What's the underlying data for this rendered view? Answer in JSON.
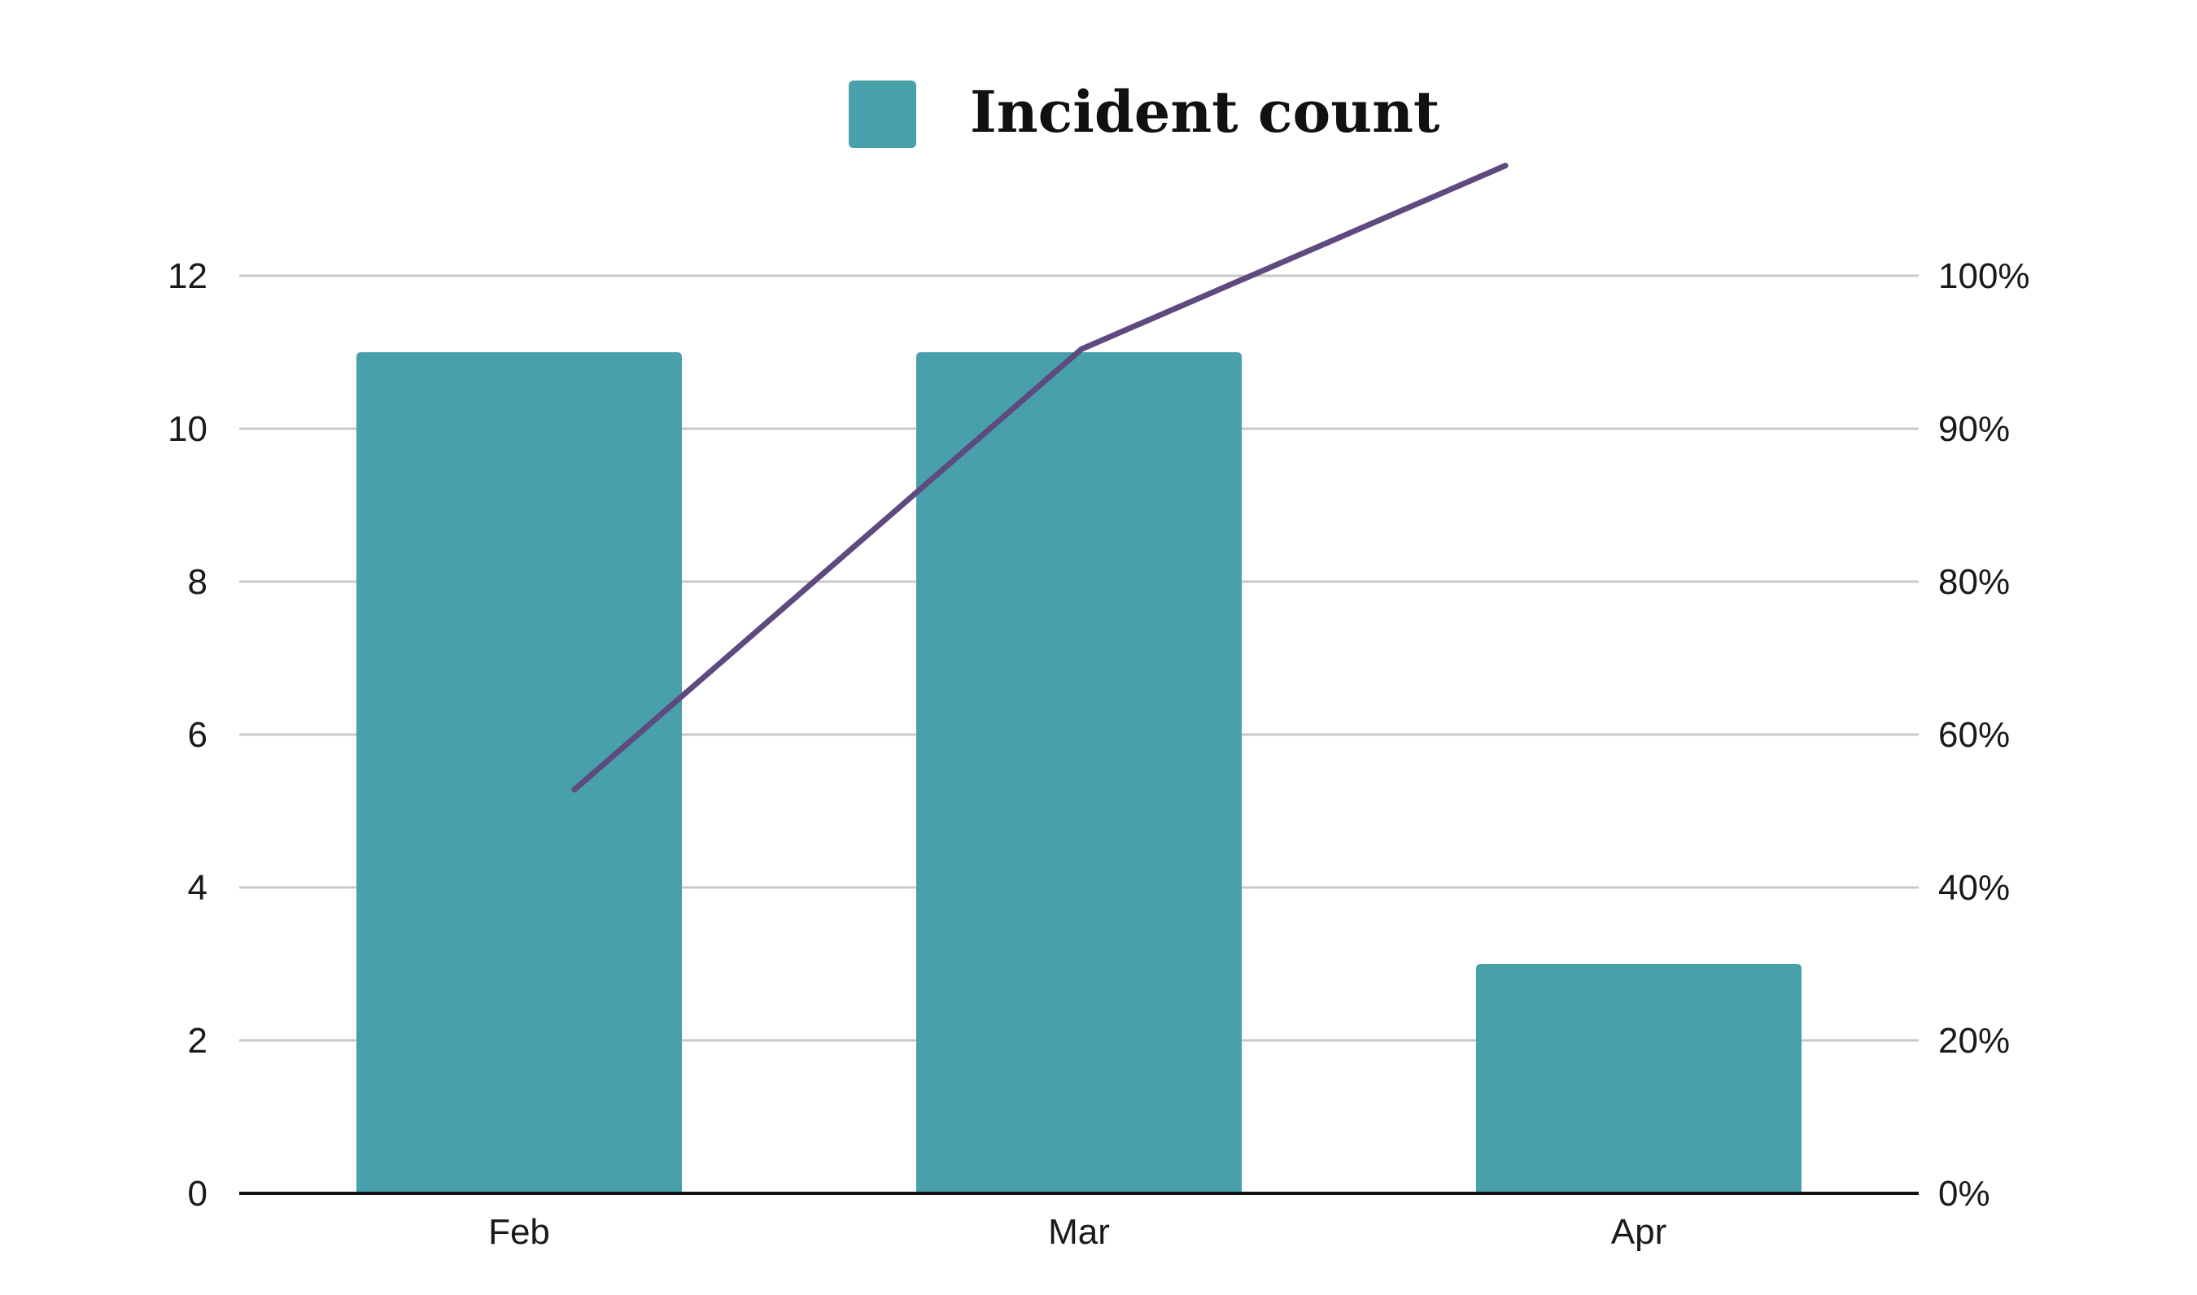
{
  "chart_data": {
    "type": "bar",
    "categories": [
      "Feb",
      "Mar",
      "Apr"
    ],
    "series": [
      {
        "name": "Incident count",
        "type": "bar",
        "axis": "left",
        "values": [
          11,
          11,
          3
        ]
      },
      {
        "type": "line",
        "axis": "right",
        "values": [
          44,
          92,
          112
        ]
      }
    ],
    "left_axis": {
      "ylim": [
        0,
        12
      ],
      "ticks": [
        "0",
        "2",
        "4",
        "6",
        "8",
        "10",
        "12"
      ]
    },
    "right_axis": {
      "ylim": [
        0,
        100
      ],
      "ticks": [
        "0%",
        "20%",
        "40%",
        "60%",
        "80%",
        "90%",
        "100%"
      ]
    },
    "legend": {
      "position": "top-center",
      "entries": [
        "Incident count"
      ]
    },
    "grid": true,
    "colors": {
      "bar": "#48a0ab",
      "line": "#5e4a7e",
      "grid": "#c8c8c8",
      "axis": "#111111"
    }
  }
}
